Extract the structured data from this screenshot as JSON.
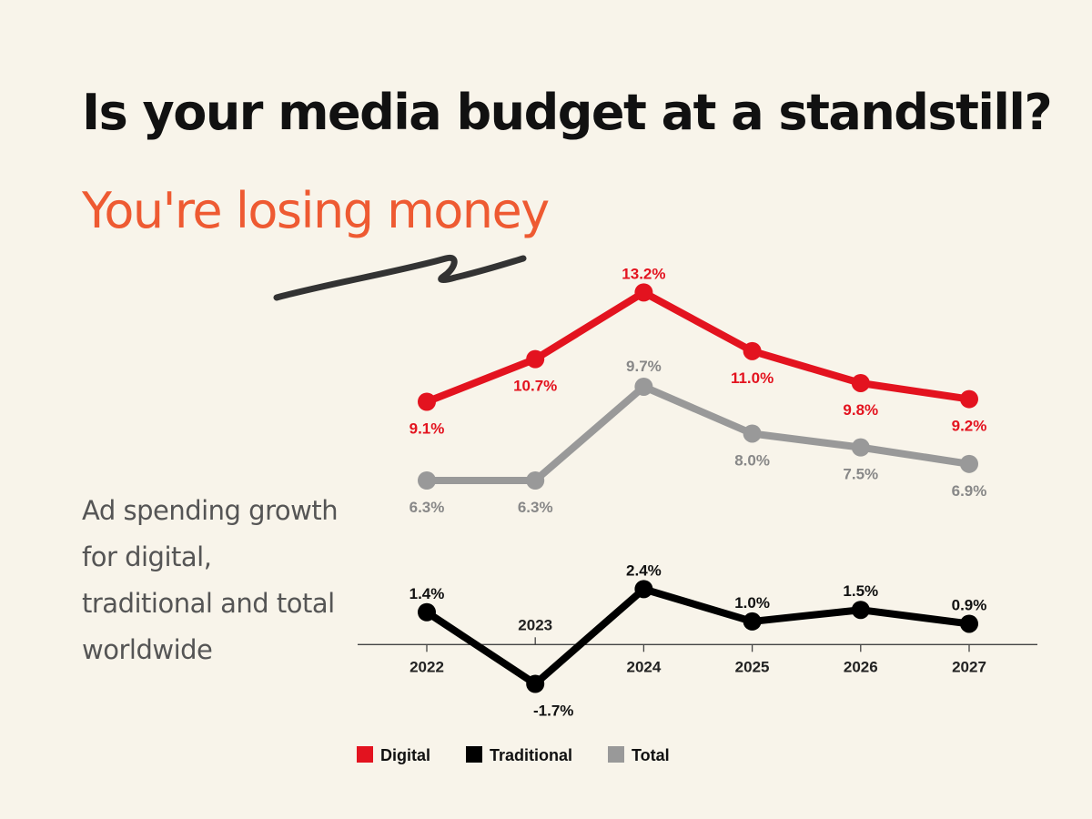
{
  "headline": "Is your media budget at a standstill?",
  "subheadline": "You're losing money",
  "description": "Ad spending growth for digital, traditional and total worldwide",
  "colors": {
    "background": "#f8f4ea",
    "headline": "#111111",
    "subheadline": "#ee5a32",
    "squiggle": "#333333"
  },
  "chart_data": {
    "type": "line",
    "x": [
      "2022",
      "2023",
      "2024",
      "2025",
      "2026",
      "2027"
    ],
    "series": [
      {
        "name": "Digital",
        "color": "#e3131f",
        "values": [
          9.1,
          10.7,
          13.2,
          11.0,
          9.8,
          9.2
        ],
        "labels": [
          "9.1%",
          "10.7%",
          "13.2%",
          "11.0%",
          "9.8%",
          "9.2%"
        ]
      },
      {
        "name": "Traditional",
        "color": "#000000",
        "values": [
          1.4,
          -1.7,
          2.4,
          1.0,
          1.5,
          0.9
        ],
        "labels": [
          "1.4%",
          "-1.7%",
          "2.4%",
          "1.0%",
          "1.5%",
          "0.9%"
        ]
      },
      {
        "name": "Total",
        "color": "#999999",
        "values": [
          6.3,
          6.3,
          9.7,
          8.0,
          7.5,
          6.9
        ],
        "labels": [
          "6.3%",
          "6.3%",
          "9.7%",
          "8.0%",
          "7.5%",
          "6.9%"
        ]
      }
    ],
    "legend": [
      "Digital",
      "Traditional",
      "Total"
    ],
    "legend_position": "bottom",
    "grid": false
  }
}
